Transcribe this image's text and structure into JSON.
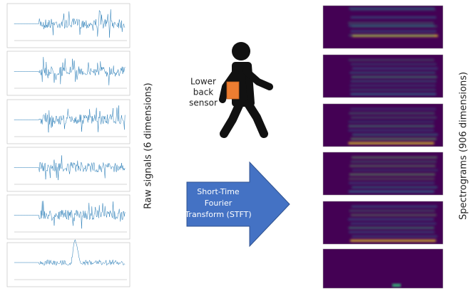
{
  "raw_signals_label": "Raw signals (6 dimensions)",
  "spectrograms_label": "Spectrograms (906 dimensions)",
  "sensor_label": [
    "Lower",
    "back",
    "sensor"
  ],
  "transform_label": [
    "Short-Time",
    "Fourier",
    "Transform (STFT)"
  ]
}
